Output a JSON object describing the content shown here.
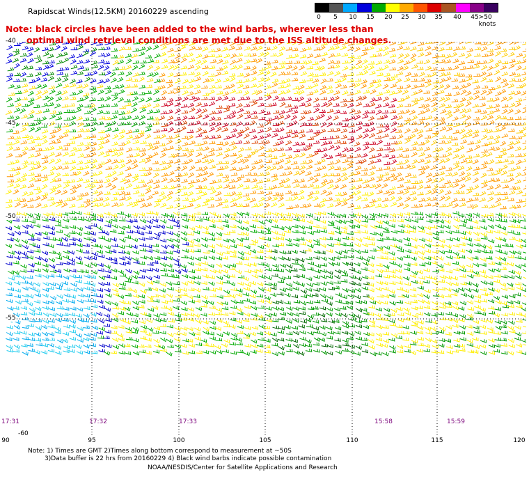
{
  "title": "Rapidscat Winds(12.5KM) 20160229 ascending",
  "note_line1": "Note: black circles have been added to the wind barbs, wherever less than",
  "note_line2": "optimal wind retrieval conditions are met due to the ISS altitude changes.",
  "legend": {
    "labels": [
      "0",
      "5",
      "10",
      "15",
      "20",
      "25",
      "30",
      "35",
      "40",
      "45",
      ">50 knots"
    ],
    "colors": [
      "#000000",
      "#555555",
      "#00aaff",
      "#0000dd",
      "#00aa00",
      "#ffff00",
      "#ffaa00",
      "#ff5500",
      "#dd0000",
      "#aa5522",
      "#ff00ff",
      "#880088",
      "#3a0060"
    ]
  },
  "lat_labels": [
    "-40",
    "-45",
    "-50",
    "-55",
    "-60"
  ],
  "lon_labels": [
    "90",
    "95",
    "100",
    "105",
    "110",
    "115",
    "120"
  ],
  "time_labels": [
    "17:31",
    "17:32",
    "17:33",
    "15:58",
    "15:59"
  ],
  "footer": {
    "line1": "Note: 1) Times are GMT 2)Times along bottom correspond to measurement at ~50S",
    "line2": "3)Data buffer is 22 hrs from 20160229 4) Black wind barbs indicate possible contamination",
    "line3": "NOAA/NESDIS/Center for Satellite Applications and Research"
  }
}
